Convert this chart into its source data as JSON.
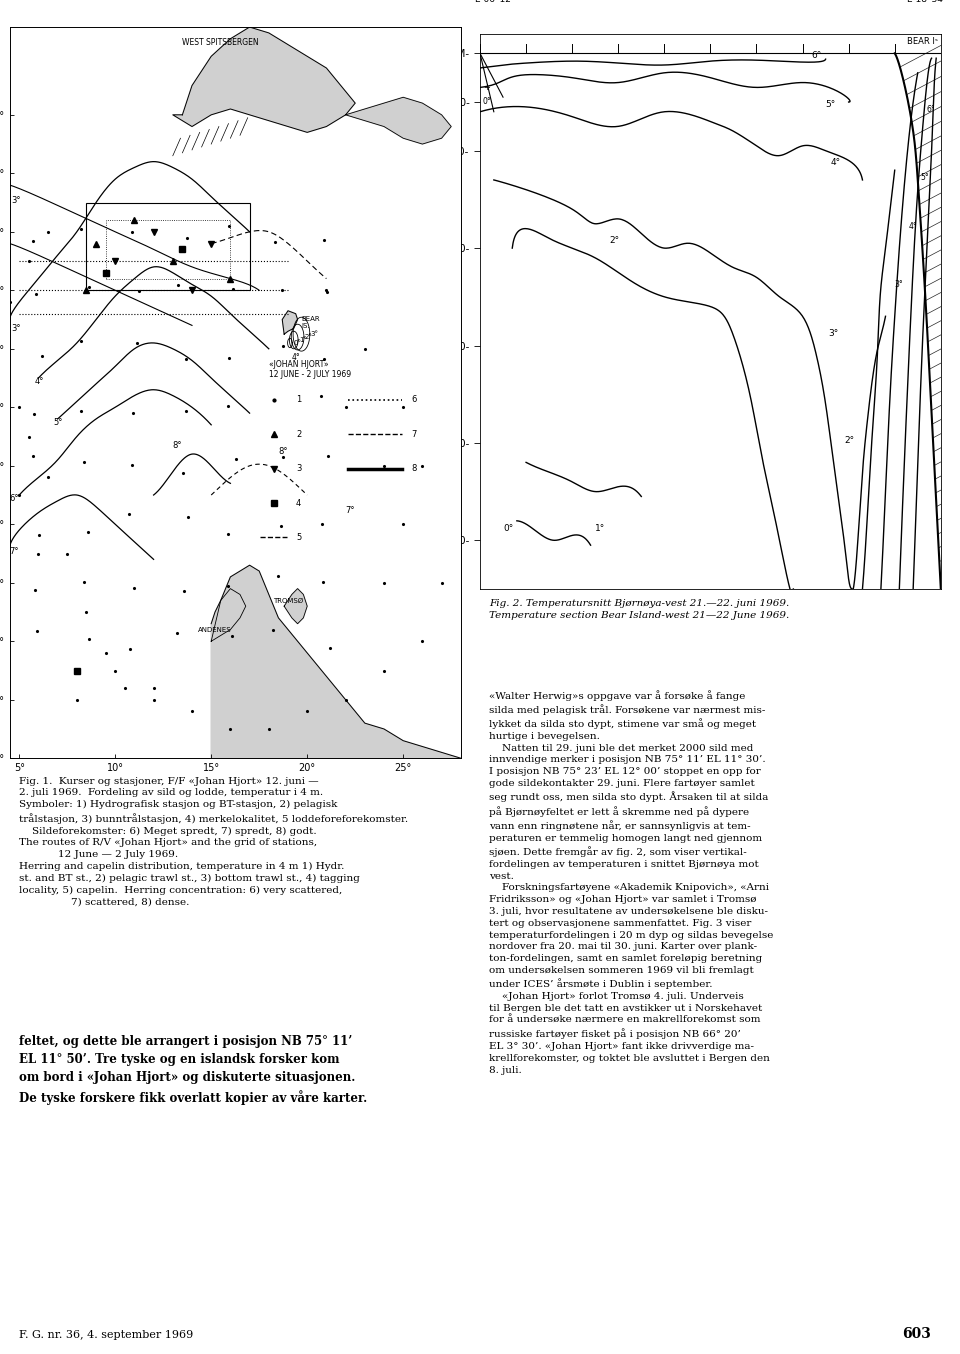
{
  "fig_width": 9.6,
  "fig_height": 13.54,
  "fig1_caption": "Fig. 1.  Kurser og stasjoner, F/F «Johan Hjort» 12. juni —\n2. juli 1969.  Fordeling av sild og lodde, temperatur i 4 m.\nSymboler: 1) Hydrografisk stasjon og BT-stasjon, 2) pelagisk\ntrålstasjon, 3) bunntrålstasjon, 4) merkelokalitet, 5 loddeforeforekomster.\n    Sildeforekomster: 6) Meget spredt, 7) spredt, 8) godt.\nThe routes of R/V «Johan Hjort» and the grid of stations,\n            12 June — 2 July 1969.\nHerring and capelin distribution, temperature in 4 m 1) Hydr.\nst. and BT st., 2) pelagic trawl st., 3) bottom trawl st., 4) tagging\nlocality, 5) capelin.  Herring concentration: 6) very scattered,\n                7) scattered, 8) dense.",
  "fig2_caption": "Fig. 2. Temperatursnitt Bjørnøya-vest 21.—22. juni 1969.\nTemperature section Bear Island-west 21—22 June 1969.",
  "right_body_text1": "«Walter Herwig»s oppgave var å forsøke å fange\nsilda med pelagisk trål. Forsøkene var nærmest mis-\nlykket da silda sto dypt, stimene var små og meget\nhurtige i bevegelsen.\n    Natten til 29. juni ble det merket 2000 sild med\ninnvendige merker i posisjon NB 75° 11’ EL 11° 30’.\nI posisjon NB 75° 23’ EL 12° 00’ stoppet en opp for\ngode sildekontakter 29. juni. Flere fartøyer samlet\nseg rundt oss, men silda sto dypt. Årsaken til at silda\npå Bjørnøyfeltet er lett å skremme ned på dypere\nvann enn ringnøtene når, er sannsynligvis at tem-\nperaturen er temmelig homogen langt ned gjennom\nsjøen. Dette fremgår av fig. 2, som viser vertikal-\nfordelingen av temperaturen i snittet Bjørnøya mot\nvest.\n    Forskningsfartøyene «Akademik Knipovich», «Arni\nFridriksson» og «Johan Hjort» var samlet i Tromsø\n3. juli, hvor resultatene av undersøkelsene ble disku-\ntert og observasjonene sammenfattet. Fig. 3 viser\ntemperaturfordelingen i 20 m dyp og sildas bevegelse\nnordover fra 20. mai til 30. juni. Karter over plank-\nton-fordelingen, samt en samlet foreløpig beretning\nom undersøkelsen sommeren 1969 vil bli fremlagt\nunder ICES’ årsmøte i Dublin i september.\n    «Johan Hjort» forlot Tromsø 4. juli. Underveis\ntil Bergen ble det tatt en avstikker ut i Norskehavet\nfor å undersøke nærmere en makrellforekomst som\nrussiske fartøyer fisket på i posisjon NB 66° 20’\nEL 3° 30’. «Johan Hjort» fant ikke drivverdige ma-\nkrellforekomster, og toktet ble avsluttet i Bergen den\n8. juli.",
  "left_body_text": "feltet, og dette ble arrangert i posisjon NB 75° 11’\nEL 11° 50’. Tre tyske og en islandsk forsker kom\nom bord i «Johan Hjort» og diskuterte situasjonen.\nDe tyske forskere fikk overlatt kopier av våre karter.",
  "footer_text": "F. G. nr. 36, 4. september 1969",
  "page_number": "603"
}
